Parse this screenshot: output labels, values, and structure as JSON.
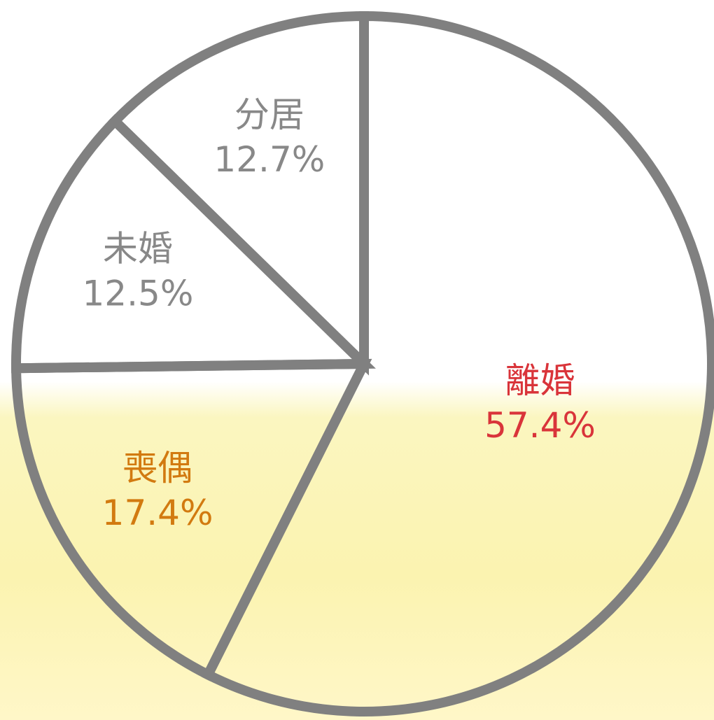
{
  "chart_data": {
    "type": "pie",
    "categories": [
      "離婚",
      "喪偶",
      "未婚",
      "分居"
    ],
    "values": [
      57.4,
      17.4,
      12.5,
      12.7
    ],
    "value_labels": [
      "57.4%",
      "17.4%",
      "12.5%",
      "12.7%"
    ],
    "colors": [
      "#d9343a",
      "#d27a10",
      "#888888",
      "#888888"
    ]
  }
}
